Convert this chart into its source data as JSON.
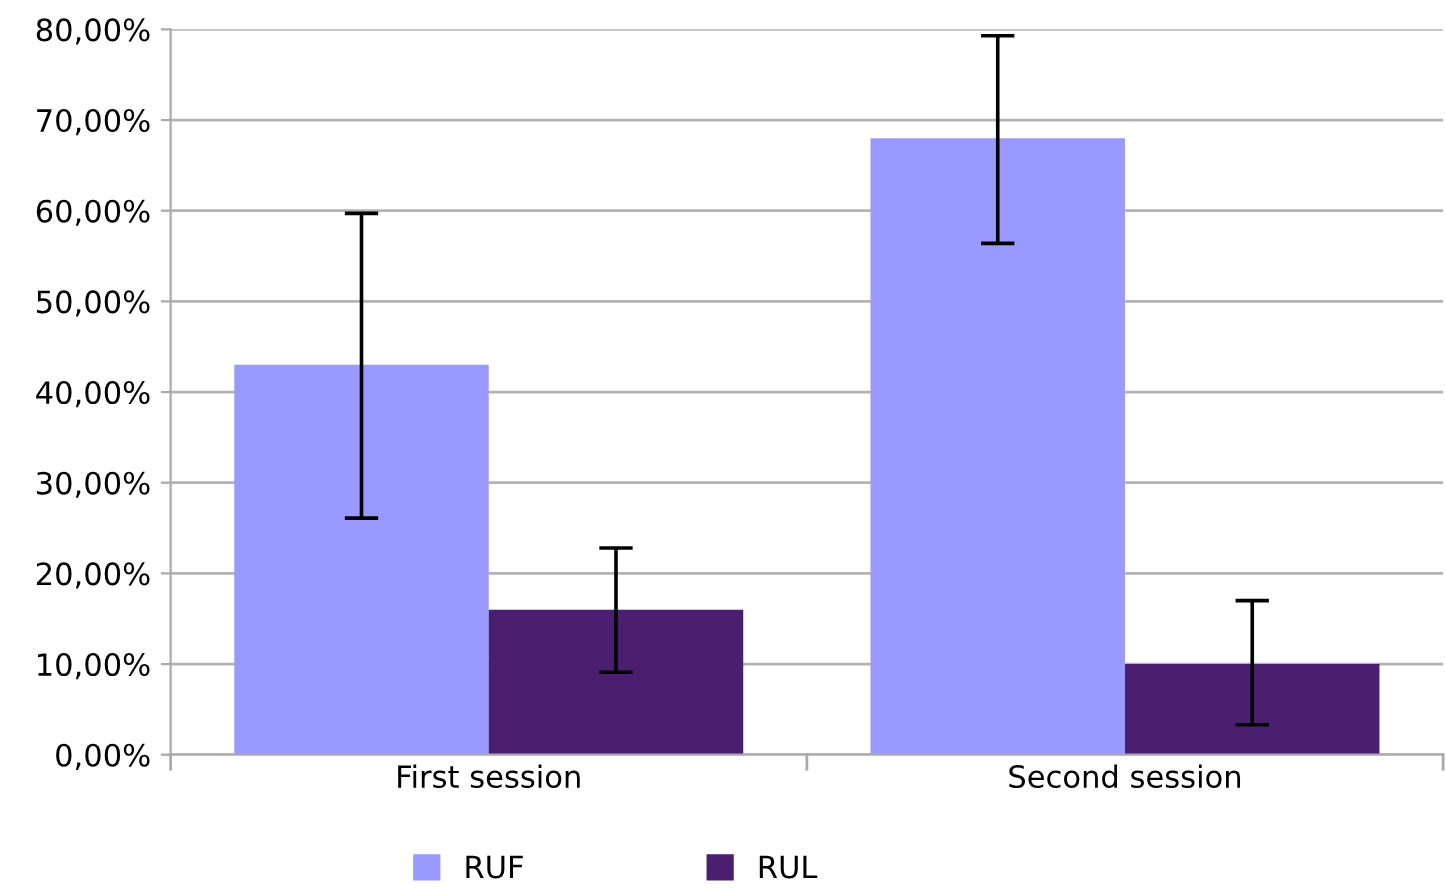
{
  "chart_data": {
    "type": "bar",
    "categories": [
      "First session",
      "Second session"
    ],
    "series": [
      {
        "name": "RUF",
        "color": "#9999ff",
        "values": [
          43,
          68
        ],
        "errors": [
          [
            26.1,
            59.7
          ],
          [
            56.4,
            79.3
          ]
        ]
      },
      {
        "name": "RUL",
        "color": "#4b1f6f",
        "values": [
          16,
          10
        ],
        "errors": [
          [
            9.1,
            22.8
          ],
          [
            3.3,
            17
          ]
        ]
      }
    ],
    "ylim": [
      0,
      80
    ],
    "yticks": [
      {
        "value": 0,
        "label": "0,00%"
      },
      {
        "value": 10,
        "label": "10,00%"
      },
      {
        "value": 20,
        "label": "20,00%"
      },
      {
        "value": 30,
        "label": "30,00%"
      },
      {
        "value": 40,
        "label": "40,00%"
      },
      {
        "value": 50,
        "label": "50,00%"
      },
      {
        "value": 60,
        "label": "60,00%"
      },
      {
        "value": 70,
        "label": "70,00%"
      },
      {
        "value": 80,
        "label": "80,00%"
      }
    ],
    "grid": "y",
    "legend": "bottom"
  }
}
